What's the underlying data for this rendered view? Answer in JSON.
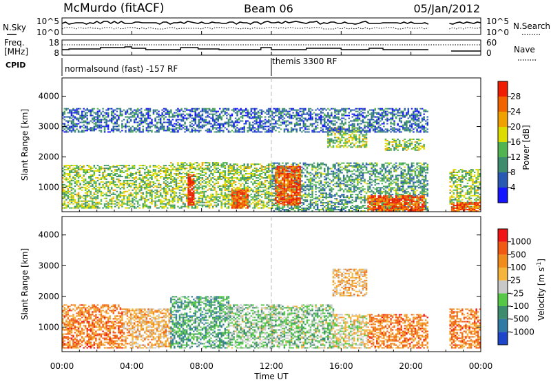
{
  "header": {
    "station": "McMurdo (fitACF)",
    "beam": "Beam 06",
    "date": "05/Jan/2012"
  },
  "noise_panel": {
    "left_label": "N.Sky",
    "right_label": "N.Search",
    "left_ticks": [
      "10^5",
      "10^0"
    ],
    "right_ticks": [
      "10^5",
      "10^0"
    ]
  },
  "freq_panel": {
    "left_label_1": "Freq.",
    "left_label_2": "[MHz]",
    "right_label": "Nave",
    "left_ticks": [
      "18",
      "8"
    ],
    "right_ticks": [
      "60",
      "0"
    ]
  },
  "cpid": {
    "label": "CPID",
    "mode_1": "normalsound (fast) -157 RF",
    "mode_2": "themis 3300 RF",
    "switch_hour": 12
  },
  "axes": {
    "ylabel": "Slant Range [km]",
    "xlabel": "Time UT",
    "x_ticks": [
      "00:00",
      "04:00",
      "08:00",
      "12:00",
      "16:00",
      "20:00",
      "00:00"
    ],
    "y_ticks": [
      "1000",
      "2000",
      "3000",
      "4000"
    ]
  },
  "power_scale": {
    "label": "Power [dB]",
    "ticks": [
      "4",
      "8",
      "12",
      "16",
      "20",
      "24",
      "28"
    ],
    "colors": [
      "#1414ff",
      "#285ab4",
      "#3c8c6e",
      "#50b450",
      "#dcdc00",
      "#f0a000",
      "#f06400",
      "#f01e00"
    ]
  },
  "velocity_scale": {
    "label": "Velocity [m s",
    "label_sup": "-1",
    "label_end": "]",
    "ticks": [
      "1000",
      "500",
      "100",
      "25",
      "-25",
      "-100",
      "-500",
      "-1000"
    ],
    "colors": [
      "#1e46c8",
      "#2d7aa5",
      "#3c8c6e",
      "#55c846",
      "#c8c8c8",
      "#f5b43c",
      "#f08c1e",
      "#f05a14",
      "#f01414"
    ]
  },
  "chart_data": {
    "type": "heatmap",
    "x_unit": "hours UT",
    "y_unit": "km",
    "xlim": [
      0,
      24
    ],
    "ylim": [
      200,
      4600
    ],
    "power_scatter_regions": [
      {
        "t": [
          0,
          6.2
        ],
        "r": [
          300,
          1700
        ],
        "level": 3
      },
      {
        "t": [
          6.2,
          9.5
        ],
        "r": [
          300,
          1800
        ],
        "level": 3
      },
      {
        "t": [
          9.5,
          12.0
        ],
        "r": [
          300,
          1750
        ],
        "level": 3
      },
      {
        "t": [
          12.0,
          21.0
        ],
        "r": [
          200,
          1800
        ],
        "level": 2
      },
      {
        "t": [
          15.2,
          17.5
        ],
        "r": [
          2300,
          2950
        ],
        "level": 3
      },
      {
        "t": [
          18.5,
          20.8
        ],
        "r": [
          2200,
          2600
        ],
        "level": 3
      },
      {
        "t": [
          22.2,
          24
        ],
        "r": [
          300,
          1600
        ],
        "level": 3
      },
      {
        "t": [
          0,
          21
        ],
        "r": [
          2800,
          3600
        ],
        "level": 1
      }
    ],
    "power_hot_regions": [
      {
        "t": [
          7.2,
          7.5
        ],
        "r": [
          400,
          1400
        ],
        "level": 7
      },
      {
        "t": [
          12.2,
          13.6
        ],
        "r": [
          400,
          1700
        ],
        "level": 6
      },
      {
        "t": [
          17.5,
          20.8
        ],
        "r": [
          200,
          700
        ],
        "level": 6
      },
      {
        "t": [
          22.3,
          24
        ],
        "r": [
          200,
          500
        ],
        "level": 6
      },
      {
        "t": [
          9.7,
          10.6
        ],
        "r": [
          300,
          900
        ],
        "level": 6
      }
    ],
    "velocity_regions": [
      {
        "t": [
          0,
          3.5
        ],
        "r": [
          300,
          1700
        ],
        "level": 6
      },
      {
        "t": [
          3.5,
          6.2
        ],
        "r": [
          300,
          1600
        ],
        "level": 5
      },
      {
        "t": [
          6.2,
          9.5
        ],
        "r": [
          300,
          2000
        ],
        "level": 2
      },
      {
        "t": [
          9.5,
          12.0
        ],
        "r": [
          300,
          1700
        ],
        "level": 3
      },
      {
        "t": [
          12.0,
          15.5
        ],
        "r": [
          300,
          1700
        ],
        "level": 3
      },
      {
        "t": [
          15.5,
          17.5
        ],
        "r": [
          300,
          1400
        ],
        "level": 4
      },
      {
        "t": [
          17.5,
          21.0
        ],
        "r": [
          300,
          1400
        ],
        "level": 6
      },
      {
        "t": [
          15.5,
          17.5
        ],
        "r": [
          2000,
          2900
        ],
        "level": 5
      },
      {
        "t": [
          22.2,
          24
        ],
        "r": [
          300,
          1600
        ],
        "level": 6
      }
    ]
  }
}
